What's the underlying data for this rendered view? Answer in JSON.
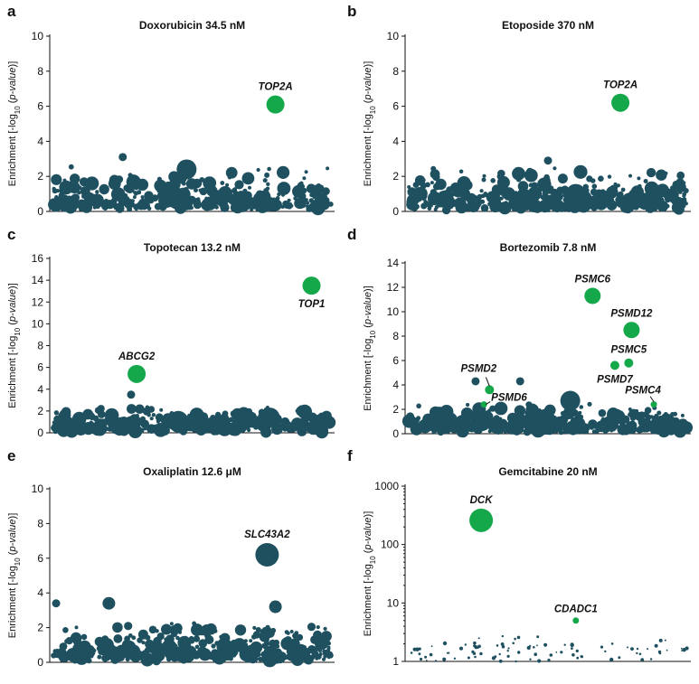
{
  "colors": {
    "background_points": "#1f5060",
    "hit_points": "#14a84a",
    "axis": "#111111"
  },
  "chart_data": [
    {
      "panel": "a",
      "type": "scatter",
      "title": "Doxorubicin 34.5 nM",
      "ylabel": "Enrichment [-log10 (p-value)]",
      "yscale": "linear",
      "ylim": [
        0,
        10
      ],
      "yticks": [
        0,
        2,
        4,
        6,
        8,
        10
      ],
      "n_background": 420,
      "highlighted": [
        {
          "gene": "TOP2A",
          "x": 0.8,
          "y": 6.1,
          "label_dir": "above"
        }
      ],
      "dark_outliers": [
        {
          "x": 0.48,
          "y": 2.4,
          "size": "large"
        },
        {
          "x": 0.25,
          "y": 3.1,
          "size": "small"
        }
      ]
    },
    {
      "panel": "b",
      "type": "scatter",
      "title": "Etoposide 370 nM",
      "ylabel": "Enrichment [-log10 (p-value)]",
      "yscale": "linear",
      "ylim": [
        0,
        10
      ],
      "yticks": [
        0,
        2,
        4,
        6,
        8,
        10
      ],
      "n_background": 420,
      "highlighted": [
        {
          "gene": "TOP2A",
          "x": 0.76,
          "y": 6.2,
          "label_dir": "above"
        }
      ],
      "dark_outliers": [
        {
          "x": 0.6,
          "y": 1.0,
          "size": "large"
        },
        {
          "x": 0.5,
          "y": 2.9,
          "size": "small"
        }
      ]
    },
    {
      "panel": "c",
      "type": "scatter",
      "title": "Topotecan 13.2 nM",
      "ylabel": "Enrichment [-log10 (p-value)]",
      "yscale": "linear",
      "ylim": [
        0,
        16
      ],
      "yticks": [
        0,
        2,
        4,
        6,
        8,
        10,
        12,
        14,
        16
      ],
      "n_background": 420,
      "highlighted": [
        {
          "gene": "TOP1",
          "x": 0.93,
          "y": 13.5,
          "label_dir": "below"
        },
        {
          "gene": "ABCG2",
          "x": 0.3,
          "y": 5.4,
          "label_dir": "above"
        }
      ],
      "dark_outliers": [
        {
          "x": 0.45,
          "y": 1.1,
          "size": "large"
        },
        {
          "x": 0.78,
          "y": 1.4,
          "size": "large"
        },
        {
          "x": 0.28,
          "y": 3.5,
          "size": "small"
        }
      ]
    },
    {
      "panel": "d",
      "type": "scatter",
      "title": "Bortezomib 7.8 nM",
      "ylabel": "Enrichment [-log10 (p-value)]",
      "yscale": "linear",
      "ylim": [
        0,
        14
      ],
      "yticks": [
        0,
        2,
        4,
        6,
        8,
        10,
        12,
        14
      ],
      "n_background": 420,
      "highlighted": [
        {
          "gene": "PSMC6",
          "x": 0.66,
          "y": 11.3,
          "label_dir": "above"
        },
        {
          "gene": "PSMD12",
          "x": 0.8,
          "y": 8.5,
          "label_dir": "above"
        },
        {
          "gene": "PSMC5",
          "x": 0.79,
          "y": 5.8,
          "label_dir": "above"
        },
        {
          "gene": "PSMD7",
          "x": 0.74,
          "y": 5.6,
          "label_dir": "below"
        },
        {
          "gene": "PSMD2",
          "x": 0.29,
          "y": 3.6,
          "label_dir": "callout"
        },
        {
          "gene": "PSMD6",
          "x": 0.27,
          "y": 2.4,
          "label_dir": "callout"
        },
        {
          "gene": "PSMC4",
          "x": 0.88,
          "y": 2.4,
          "label_dir": "callout"
        }
      ],
      "dark_outliers": [
        {
          "x": 0.49,
          "y": 1.2,
          "size": "large"
        },
        {
          "x": 0.58,
          "y": 2.7,
          "size": "large"
        },
        {
          "x": 0.24,
          "y": 4.3,
          "size": "small"
        },
        {
          "x": 0.4,
          "y": 4.3,
          "size": "small"
        }
      ]
    },
    {
      "panel": "e",
      "type": "scatter",
      "title": "Oxaliplatin 12.6 μM",
      "ylabel": "Enrichment [-log10 (p-value)]",
      "yscale": "linear",
      "ylim": [
        0,
        10
      ],
      "yticks": [
        0,
        2,
        4,
        6,
        8,
        10
      ],
      "n_background": 420,
      "highlighted": [
        {
          "gene": "SLC43A2",
          "x": 0.77,
          "y": 6.2,
          "label_dir": "above",
          "color": "dark"
        }
      ],
      "dark_outliers": [
        {
          "x": 0.2,
          "y": 3.4,
          "size": "medium"
        },
        {
          "x": 0.8,
          "y": 3.2,
          "size": "medium"
        },
        {
          "x": 0.01,
          "y": 3.4,
          "size": "small"
        }
      ]
    },
    {
      "panel": "f",
      "type": "scatter",
      "title": "Gemcitabine 20 nM",
      "ylabel": "Enrichment [-log10 (p-value)]",
      "yscale": "log",
      "ylim": [
        1,
        1000
      ],
      "yticks": [
        1,
        10,
        100,
        1000
      ],
      "n_background": 90,
      "highlighted": [
        {
          "gene": "DCK",
          "x": 0.26,
          "y": 260,
          "label_dir": "above"
        },
        {
          "gene": "CDADC1",
          "x": 0.6,
          "y": 5,
          "label_dir": "above"
        }
      ],
      "dark_outliers": []
    }
  ]
}
